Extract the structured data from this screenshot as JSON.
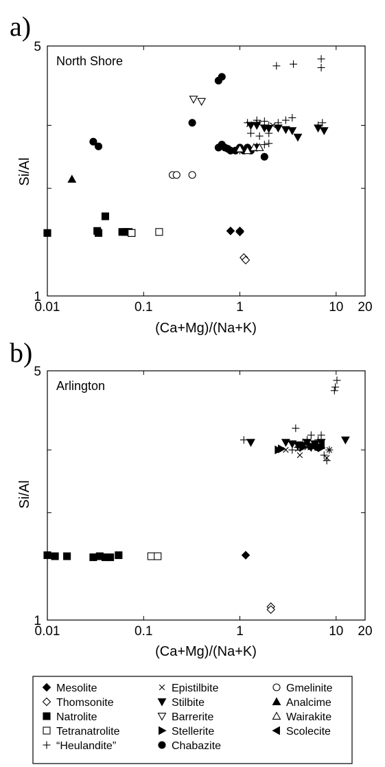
{
  "legend": [
    {
      "key": "mesolite",
      "label": "Mesolite",
      "marker": "diamond-filled"
    },
    {
      "key": "thomsonite",
      "label": "Thomsonite",
      "marker": "diamond-open"
    },
    {
      "key": "natrolite",
      "label": "Natrolite",
      "marker": "square-filled"
    },
    {
      "key": "tetranatrolite",
      "label": "Tetranatrolite",
      "marker": "square-open"
    },
    {
      "key": "heulandite",
      "label": "“Heulandite”",
      "marker": "plus"
    },
    {
      "key": "epistilbite",
      "label": "Epistilbite",
      "marker": "cross"
    },
    {
      "key": "stilbite",
      "label": "Stilbite",
      "marker": "triangle-down-filled"
    },
    {
      "key": "barrerite",
      "label": "Barrerite",
      "marker": "triangle-down-open"
    },
    {
      "key": "stellerite",
      "label": "Stellerite",
      "marker": "triangle-right-filled"
    },
    {
      "key": "chabazite",
      "label": "Chabazite",
      "marker": "circle-filled"
    },
    {
      "key": "gmelinite",
      "label": "Gmelinite",
      "marker": "circle-open"
    },
    {
      "key": "analcime",
      "label": "Analcime",
      "marker": "triangle-up-filled"
    },
    {
      "key": "wairakite",
      "label": "Wairakite",
      "marker": "triangle-up-open"
    },
    {
      "key": "scolecite",
      "label": "Scolecite",
      "marker": "triangle-left-filled"
    }
  ],
  "chart_data": [
    {
      "type": "scatter",
      "panel_label": "a)",
      "site": "North Shore",
      "xlabel": "(Ca+Mg)/(Na+K)",
      "ylabel": "Si/Al",
      "xscale": "log",
      "yscale": "log",
      "xlim": [
        0.01,
        20
      ],
      "ylim": [
        1,
        5
      ],
      "xticks": [
        {
          "v": 0.01,
          "label": "0.01"
        },
        {
          "v": 0.1,
          "label": "0.1"
        },
        {
          "v": 1,
          "label": "1"
        },
        {
          "v": 10,
          "label": "10"
        },
        {
          "v": 20,
          "label": "20"
        }
      ],
      "yticks": [
        {
          "v": 1,
          "label": "1"
        },
        {
          "v": 5,
          "label": "5"
        }
      ],
      "ytick_marks": [
        2,
        3
      ],
      "series": [
        {
          "key": "mesolite",
          "points": [
            [
              0.8,
              1.52
            ],
            [
              1.0,
              1.52
            ],
            [
              1.0,
              1.51
            ]
          ]
        },
        {
          "key": "thomsonite",
          "points": [
            [
              1.1,
              1.28
            ],
            [
              1.15,
              1.26
            ]
          ]
        },
        {
          "key": "natrolite",
          "points": [
            [
              0.01,
              1.5
            ],
            [
              0.033,
              1.52
            ],
            [
              0.034,
              1.5
            ],
            [
              0.04,
              1.67
            ],
            [
              0.06,
              1.51
            ],
            [
              0.065,
              1.51
            ],
            [
              0.07,
              1.51
            ],
            [
              0.075,
              1.5
            ]
          ]
        },
        {
          "key": "tetranatrolite",
          "points": [
            [
              0.075,
              1.5
            ],
            [
              0.145,
              1.51
            ]
          ]
        },
        {
          "key": "heulandite",
          "points": [
            [
              2.4,
              4.4
            ],
            [
              3.6,
              4.45
            ],
            [
              7.0,
              4.6
            ],
            [
              7.0,
              4.35
            ],
            [
              1.2,
              3.05
            ],
            [
              1.5,
              3.1
            ],
            [
              1.8,
              3.08
            ],
            [
              2.0,
              3.0
            ],
            [
              2.5,
              3.05
            ],
            [
              3.0,
              3.1
            ],
            [
              3.5,
              3.15
            ],
            [
              2.0,
              2.85
            ],
            [
              1.6,
              2.8
            ],
            [
              1.3,
              2.85
            ],
            [
              6.5,
              3.0
            ],
            [
              7.2,
              3.05
            ],
            [
              1.5,
              2.62
            ],
            [
              1.8,
              2.65
            ],
            [
              2.0,
              2.67
            ],
            [
              1.0,
              2.55
            ],
            [
              1.2,
              2.6
            ]
          ]
        },
        {
          "key": "epistilbite",
          "points": [
            [
              1.25,
              3.02
            ],
            [
              1.55,
              3.05
            ],
            [
              2.2,
              3.0
            ]
          ]
        },
        {
          "key": "stilbite",
          "points": [
            [
              1.3,
              3.0
            ],
            [
              1.5,
              3.0
            ],
            [
              2.5,
              2.95
            ],
            [
              3.0,
              2.92
            ],
            [
              3.5,
              2.9
            ],
            [
              4.0,
              2.78
            ],
            [
              7.5,
              2.9
            ],
            [
              6.5,
              2.95
            ],
            [
              2.0,
              2.94
            ],
            [
              1.8,
              2.95
            ]
          ]
        },
        {
          "key": "barrerite",
          "points": [
            [
              0.33,
              3.55
            ],
            [
              0.4,
              3.5
            ]
          ]
        },
        {
          "key": "stellerite",
          "points": []
        },
        {
          "key": "chabazite",
          "points": [
            [
              0.6,
              4.0
            ],
            [
              0.65,
              4.1
            ],
            [
              0.32,
              3.05
            ],
            [
              0.03,
              2.7
            ],
            [
              0.034,
              2.62
            ],
            [
              0.6,
              2.6
            ],
            [
              0.65,
              2.65
            ],
            [
              0.7,
              2.6
            ],
            [
              0.75,
              2.58
            ],
            [
              0.8,
              2.55
            ],
            [
              0.9,
              2.55
            ],
            [
              1.0,
              2.6
            ],
            [
              1.2,
              2.6
            ],
            [
              1.3,
              2.55
            ],
            [
              1.5,
              2.6
            ],
            [
              1.8,
              2.45
            ],
            [
              1.1,
              2.55
            ]
          ]
        },
        {
          "key": "gmelinite",
          "points": [
            [
              0.2,
              2.18
            ],
            [
              0.22,
              2.18
            ],
            [
              0.32,
              2.18
            ]
          ]
        },
        {
          "key": "analcime",
          "points": [
            [
              0.018,
              2.12
            ]
          ]
        },
        {
          "key": "wairakite",
          "points": [
            [
              1.0,
              2.58
            ],
            [
              1.2,
              2.55
            ],
            [
              1.4,
              2.6
            ],
            [
              1.6,
              2.6
            ]
          ]
        },
        {
          "key": "scolecite",
          "points": []
        }
      ]
    },
    {
      "type": "scatter",
      "panel_label": "b)",
      "site": "Arlington",
      "xlabel": "(Ca+Mg)/(Na+K)",
      "ylabel": "Si/Al",
      "xscale": "log",
      "yscale": "log",
      "xlim": [
        0.01,
        20
      ],
      "ylim": [
        1,
        5
      ],
      "xticks": [
        {
          "v": 0.01,
          "label": "0.01"
        },
        {
          "v": 0.1,
          "label": "0.1"
        },
        {
          "v": 1,
          "label": "1"
        },
        {
          "v": 10,
          "label": "10"
        },
        {
          "v": 20,
          "label": "20"
        }
      ],
      "yticks": [
        {
          "v": 1,
          "label": "1"
        },
        {
          "v": 5,
          "label": "5"
        }
      ],
      "ytick_marks": [
        2,
        3
      ],
      "series": [
        {
          "key": "mesolite",
          "points": [
            [
              1.15,
              1.52
            ]
          ]
        },
        {
          "key": "thomsonite",
          "points": [
            [
              2.1,
              1.09
            ],
            [
              2.1,
              1.07
            ]
          ]
        },
        {
          "key": "natrolite",
          "points": [
            [
              0.01,
              1.52
            ],
            [
              0.012,
              1.51
            ],
            [
              0.016,
              1.51
            ],
            [
              0.03,
              1.5
            ],
            [
              0.035,
              1.51
            ],
            [
              0.04,
              1.5
            ],
            [
              0.045,
              1.5
            ],
            [
              0.055,
              1.52
            ]
          ]
        },
        {
          "key": "tetranatrolite",
          "points": [
            [
              0.12,
              1.51
            ],
            [
              0.14,
              1.51
            ]
          ]
        },
        {
          "key": "heulandite",
          "points": [
            [
              10.2,
              4.7
            ],
            [
              9.8,
              4.5
            ],
            [
              9.6,
              4.4
            ],
            [
              3.8,
              3.45
            ],
            [
              1.1,
              3.2
            ],
            [
              5.5,
              3.3
            ],
            [
              6.5,
              3.2
            ],
            [
              7.0,
              3.3
            ],
            [
              7.5,
              2.9
            ],
            [
              8.0,
              2.8
            ],
            [
              4.5,
              3.15
            ],
            [
              3.5,
              3.0
            ],
            [
              6.0,
              3.1
            ],
            [
              5.0,
              3.2
            ],
            [
              8.5,
              3.0
            ],
            [
              4.0,
              3.05
            ]
          ]
        },
        {
          "key": "epistilbite",
          "points": [
            [
              3.0,
              3.0
            ],
            [
              4.0,
              3.02
            ],
            [
              5.0,
              3.05
            ],
            [
              8.0,
              2.85
            ],
            [
              8.5,
              3.0
            ],
            [
              4.2,
              2.9
            ]
          ]
        },
        {
          "key": "stilbite",
          "points": [
            [
              1.3,
              3.15
            ],
            [
              3.0,
              3.15
            ],
            [
              3.5,
              3.12
            ],
            [
              4.0,
              3.1
            ],
            [
              5.0,
              3.15
            ],
            [
              6.0,
              3.12
            ],
            [
              7.0,
              3.15
            ],
            [
              12.5,
              3.2
            ],
            [
              4.5,
              3.08
            ],
            [
              5.5,
              3.05
            ]
          ]
        },
        {
          "key": "barrerite",
          "points": []
        },
        {
          "key": "stellerite",
          "points": [
            [
              2.5,
              3.0
            ],
            [
              2.7,
              3.02
            ],
            [
              4.5,
              3.05
            ],
            [
              6.0,
              3.1
            ],
            [
              5.5,
              3.08
            ],
            [
              6.5,
              3.06
            ],
            [
              7.0,
              3.04
            ]
          ]
        },
        {
          "key": "chabazite",
          "points": []
        },
        {
          "key": "gmelinite",
          "points": []
        },
        {
          "key": "analcime",
          "points": []
        },
        {
          "key": "wairakite",
          "points": []
        },
        {
          "key": "scolecite",
          "points": [
            [
              6.0,
              3.05
            ],
            [
              7.0,
              3.1
            ]
          ]
        }
      ]
    }
  ]
}
